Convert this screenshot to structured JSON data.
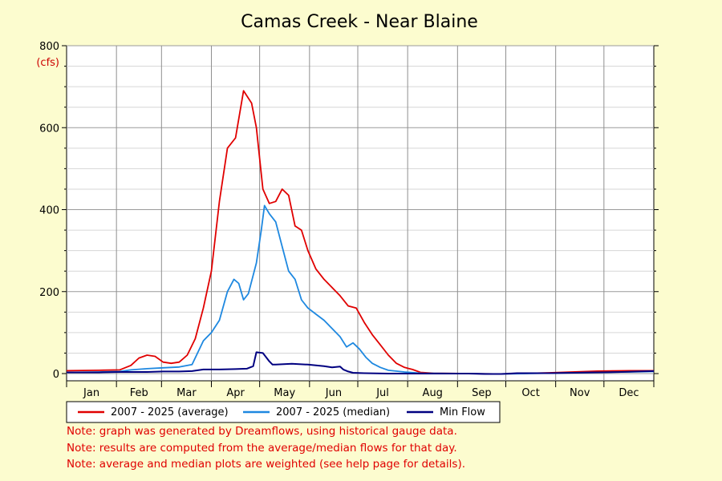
{
  "colors": {
    "background": "#fcfccf",
    "plot_background": "#ffffff",
    "average": "#e00000",
    "median": "#1e88e0",
    "min_flow": "#000080",
    "unit_label": "#cc0000",
    "notes": "#e00000"
  },
  "notes": [
    "Note: graph was generated by Dreamflows, using historical gauge data.",
    "Note: results are computed from the average/median flows for that day.",
    "Note: average and median plots are weighted (see help page for details)."
  ],
  "chart_data": {
    "type": "line",
    "title": "Camas Creek - Near Blaine",
    "ylabel_unit": "(cfs)",
    "ylim": [
      0,
      800
    ],
    "yticks": [
      0,
      200,
      400,
      600,
      800
    ],
    "y_tick_labels": [
      "0",
      "200",
      "400",
      "600",
      "800"
    ],
    "x_unit": "day of year",
    "xlim": [
      0,
      365
    ],
    "month_labels": [
      "Jan",
      "Feb",
      "Mar",
      "Apr",
      "May",
      "Jun",
      "Jul",
      "Aug",
      "Sep",
      "Oct",
      "Nov",
      "Dec"
    ],
    "grid": true,
    "legend_position": "bottom",
    "series": [
      {
        "name": "2007 - 2025 (average)",
        "color": "#e00000",
        "points": [
          [
            0,
            7
          ],
          [
            20,
            8
          ],
          [
            33,
            9
          ],
          [
            40,
            20
          ],
          [
            45,
            38
          ],
          [
            50,
            45
          ],
          [
            55,
            42
          ],
          [
            60,
            28
          ],
          [
            65,
            25
          ],
          [
            70,
            28
          ],
          [
            75,
            45
          ],
          [
            80,
            85
          ],
          [
            85,
            160
          ],
          [
            90,
            250
          ],
          [
            95,
            420
          ],
          [
            100,
            550
          ],
          [
            105,
            575
          ],
          [
            110,
            690
          ],
          [
            115,
            660
          ],
          [
            118,
            600
          ],
          [
            122,
            450
          ],
          [
            126,
            415
          ],
          [
            130,
            420
          ],
          [
            134,
            450
          ],
          [
            138,
            435
          ],
          [
            142,
            360
          ],
          [
            146,
            350
          ],
          [
            150,
            300
          ],
          [
            155,
            255
          ],
          [
            160,
            230
          ],
          [
            165,
            210
          ],
          [
            170,
            190
          ],
          [
            175,
            165
          ],
          [
            180,
            160
          ],
          [
            185,
            125
          ],
          [
            190,
            95
          ],
          [
            195,
            70
          ],
          [
            200,
            45
          ],
          [
            205,
            25
          ],
          [
            210,
            15
          ],
          [
            215,
            10
          ],
          [
            220,
            3
          ],
          [
            228,
            1
          ],
          [
            250,
            0
          ],
          [
            270,
            -1
          ],
          [
            300,
            2
          ],
          [
            330,
            6
          ],
          [
            350,
            7
          ],
          [
            365,
            7
          ]
        ]
      },
      {
        "name": "2007 - 2025 (median)",
        "color": "#1e88e0",
        "points": [
          [
            0,
            3
          ],
          [
            20,
            4
          ],
          [
            33,
            5
          ],
          [
            40,
            9
          ],
          [
            50,
            12
          ],
          [
            60,
            14
          ],
          [
            70,
            16
          ],
          [
            78,
            22
          ],
          [
            85,
            80
          ],
          [
            90,
            100
          ],
          [
            95,
            130
          ],
          [
            100,
            200
          ],
          [
            104,
            230
          ],
          [
            107,
            220
          ],
          [
            110,
            180
          ],
          [
            113,
            195
          ],
          [
            118,
            270
          ],
          [
            121,
            350
          ],
          [
            123,
            410
          ],
          [
            126,
            390
          ],
          [
            130,
            370
          ],
          [
            134,
            310
          ],
          [
            138,
            250
          ],
          [
            142,
            230
          ],
          [
            146,
            180
          ],
          [
            150,
            160
          ],
          [
            155,
            145
          ],
          [
            160,
            130
          ],
          [
            165,
            110
          ],
          [
            170,
            90
          ],
          [
            174,
            65
          ],
          [
            178,
            75
          ],
          [
            182,
            60
          ],
          [
            186,
            40
          ],
          [
            190,
            25
          ],
          [
            195,
            15
          ],
          [
            200,
            8
          ],
          [
            210,
            4
          ],
          [
            220,
            1
          ],
          [
            250,
            0
          ],
          [
            270,
            -1
          ],
          [
            300,
            1
          ],
          [
            330,
            3
          ],
          [
            350,
            4
          ],
          [
            365,
            5
          ]
        ]
      },
      {
        "name": "Min Flow",
        "color": "#000080",
        "points": [
          [
            0,
            3
          ],
          [
            20,
            3
          ],
          [
            33,
            4
          ],
          [
            50,
            4
          ],
          [
            60,
            5
          ],
          [
            70,
            5
          ],
          [
            78,
            6
          ],
          [
            85,
            10
          ],
          [
            95,
            10
          ],
          [
            105,
            11
          ],
          [
            112,
            12
          ],
          [
            116,
            18
          ],
          [
            118,
            52
          ],
          [
            122,
            50
          ],
          [
            126,
            30
          ],
          [
            128,
            22
          ],
          [
            130,
            22
          ],
          [
            140,
            24
          ],
          [
            150,
            22
          ],
          [
            155,
            20
          ],
          [
            160,
            18
          ],
          [
            165,
            15
          ],
          [
            170,
            17
          ],
          [
            172,
            10
          ],
          [
            175,
            5
          ],
          [
            178,
            2
          ],
          [
            185,
            1
          ],
          [
            200,
            0
          ],
          [
            230,
            0
          ],
          [
            250,
            0
          ],
          [
            260,
            -1
          ],
          [
            270,
            -1
          ],
          [
            280,
            1
          ],
          [
            300,
            1
          ],
          [
            330,
            3
          ],
          [
            345,
            4
          ],
          [
            355,
            5
          ],
          [
            365,
            6
          ]
        ]
      }
    ]
  }
}
